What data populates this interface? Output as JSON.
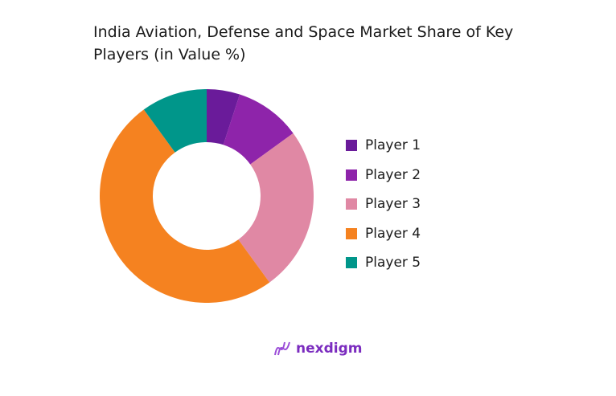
{
  "chart_data": {
    "type": "donut",
    "title": "India Aviation, Defense and Space Market Share of Key Players (in Value %)",
    "categories": [
      "Player 1",
      "Player 2",
      "Player 3",
      "Player 4",
      "Player 5"
    ],
    "values": [
      5,
      10,
      25,
      50,
      10
    ],
    "colors": [
      "#6a1b9a",
      "#8e24aa",
      "#e088a4",
      "#f58220",
      "#00968a"
    ],
    "legend_position": "right"
  },
  "brand": {
    "name": "nexdigm",
    "color": "#7b2cbf"
  }
}
